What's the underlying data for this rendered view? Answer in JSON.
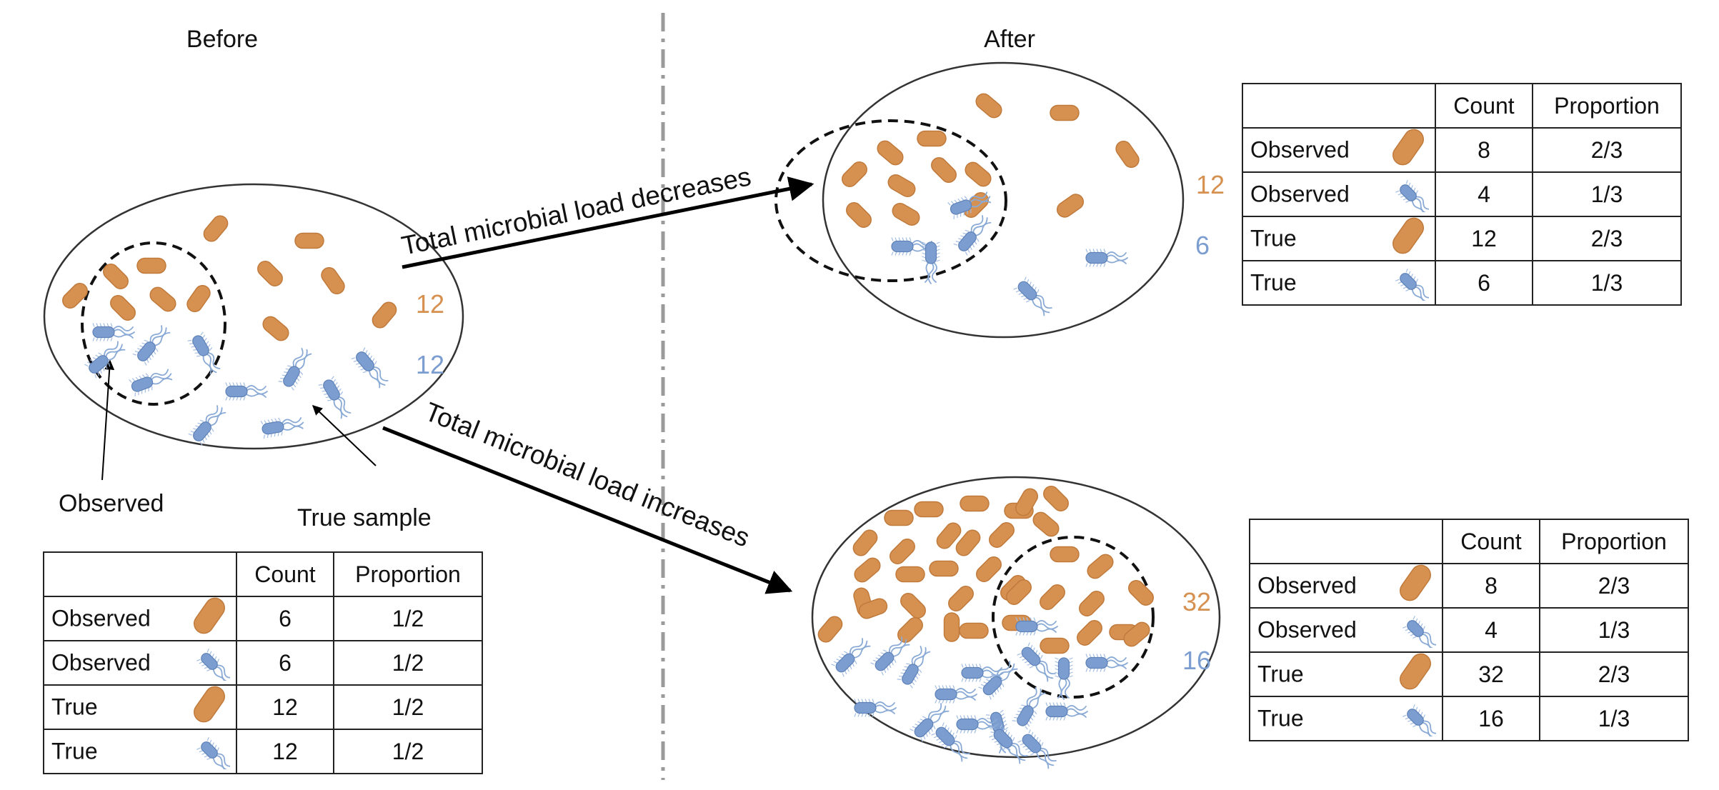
{
  "colors": {
    "rod": "#D69150",
    "cocci": "#7B9DD0",
    "rod_count": "#D69150",
    "cocci_count": "#7B9DD0"
  },
  "before": {
    "title": "Before",
    "observed_label": "Observed",
    "true_sample_label": "True sample",
    "count_rod": "12",
    "count_cocci": "12",
    "table": {
      "headers": [
        "",
        "Count",
        "Proportion"
      ],
      "rows": [
        {
          "label": "Observed",
          "icon": "orange-rod-bacterium",
          "count": "6",
          "proportion": "1/2"
        },
        {
          "label": "Observed",
          "icon": "blue-flagellated-bacterium",
          "count": "6",
          "proportion": "1/2"
        },
        {
          "label": "True",
          "icon": "orange-rod-bacterium",
          "count": "12",
          "proportion": "1/2"
        },
        {
          "label": "True",
          "icon": "blue-flagellated-bacterium",
          "count": "12",
          "proportion": "1/2"
        }
      ]
    }
  },
  "arrows": {
    "decrease_label": "Total microbial load decreases",
    "increase_label": "Total microbial load increases"
  },
  "after": {
    "title": "After",
    "top": {
      "count_rod": "12",
      "count_cocci": "6",
      "table": {
        "headers": [
          "",
          "Count",
          "Proportion"
        ],
        "rows": [
          {
            "label": "Observed",
            "icon": "orange-rod-bacterium",
            "count": "8",
            "proportion": "2/3"
          },
          {
            "label": "Observed",
            "icon": "blue-flagellated-bacterium",
            "count": "4",
            "proportion": "1/3"
          },
          {
            "label": "True",
            "icon": "orange-rod-bacterium",
            "count": "12",
            "proportion": "2/3"
          },
          {
            "label": "True",
            "icon": "blue-flagellated-bacterium",
            "count": "6",
            "proportion": "1/3"
          }
        ]
      }
    },
    "bottom": {
      "count_rod": "32",
      "count_cocci": "16",
      "table": {
        "headers": [
          "",
          "Count",
          "Proportion"
        ],
        "rows": [
          {
            "label": "Observed",
            "icon": "orange-rod-bacterium",
            "count": "8",
            "proportion": "2/3"
          },
          {
            "label": "Observed",
            "icon": "blue-flagellated-bacterium",
            "count": "4",
            "proportion": "1/3"
          },
          {
            "label": "True",
            "icon": "orange-rod-bacterium",
            "count": "32",
            "proportion": "2/3"
          },
          {
            "label": "True",
            "icon": "blue-flagellated-bacterium",
            "count": "16",
            "proportion": "1/3"
          }
        ]
      }
    }
  }
}
